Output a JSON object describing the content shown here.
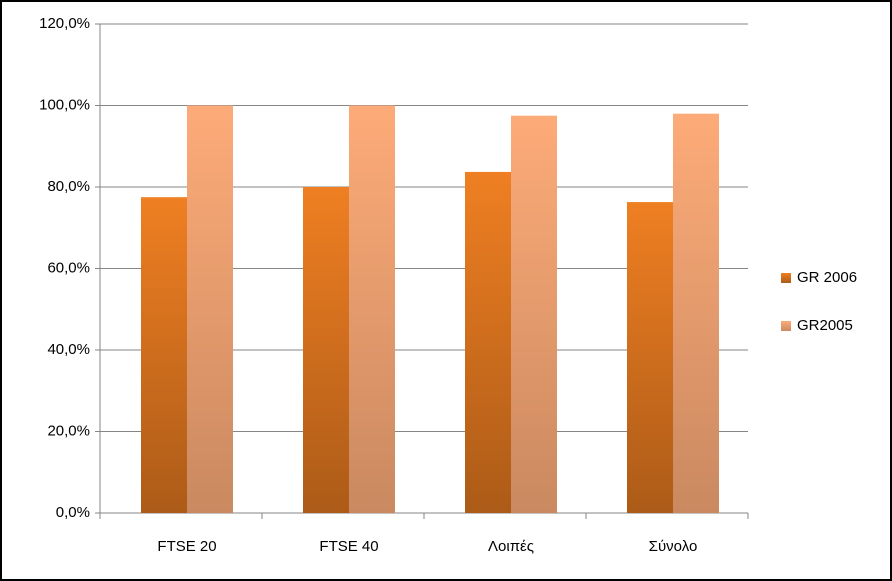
{
  "chart_data": {
    "type": "bar",
    "categories": [
      "FTSE 20",
      "FTSE 40",
      "Λοιπές",
      "Σύνολο"
    ],
    "series": [
      {
        "name": "GR 2006",
        "color": "#ef7f22",
        "values": [
          77.5,
          80.0,
          83.7,
          76.3
        ]
      },
      {
        "name": "GR2005",
        "color": "#fdab78",
        "values": [
          100.0,
          100.0,
          97.5,
          98.0
        ]
      }
    ],
    "ylim": [
      0,
      120
    ],
    "yticks": [
      {
        "value": 0,
        "label": "0,0%"
      },
      {
        "value": 20,
        "label": "20,0%"
      },
      {
        "value": 40,
        "label": "40,0%"
      },
      {
        "value": 60,
        "label": "60,0%"
      },
      {
        "value": 80,
        "label": "80,0%"
      },
      {
        "value": 100,
        "label": "100,0%"
      },
      {
        "value": 120,
        "label": "120,0%"
      }
    ],
    "grid": true,
    "legend": "right"
  }
}
